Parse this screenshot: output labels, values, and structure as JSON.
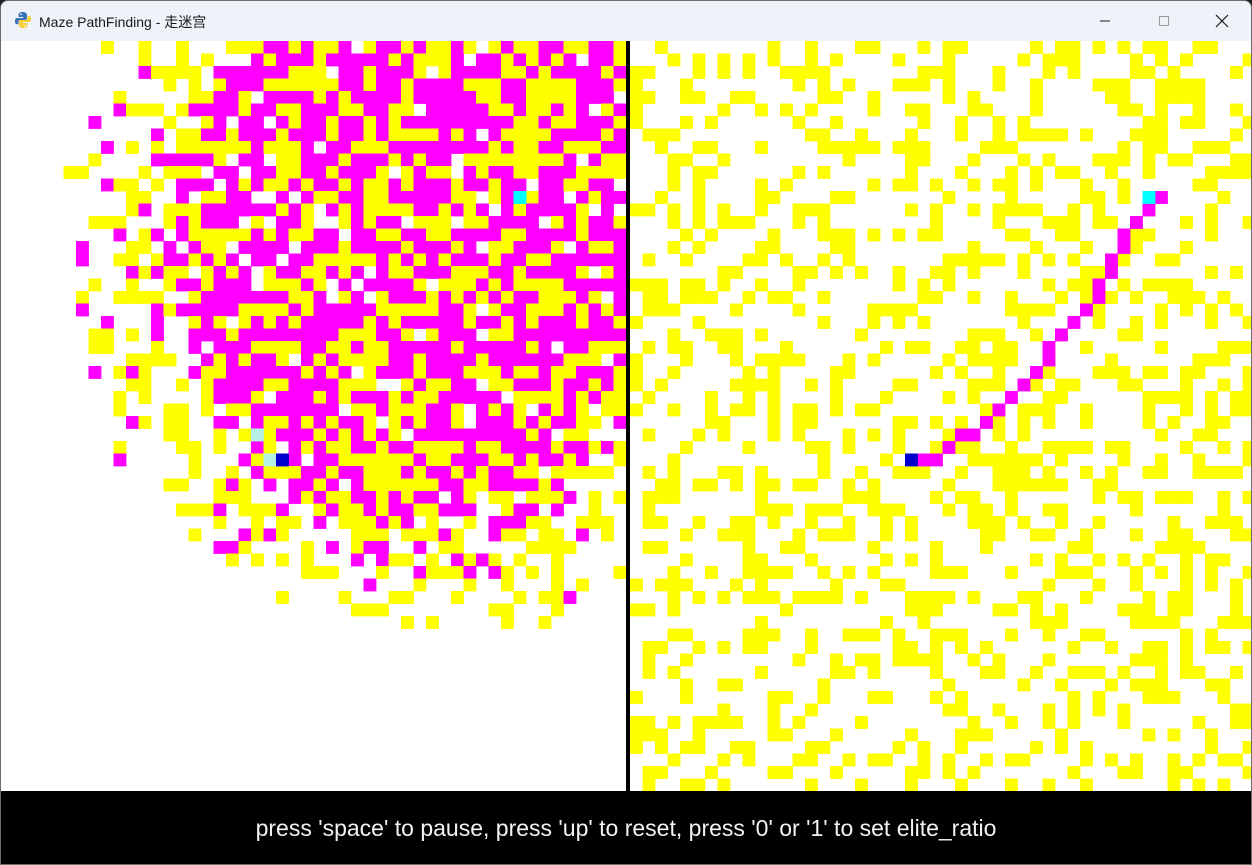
{
  "window": {
    "title": "Maze PathFinding - 走迷宫",
    "app_icon": "python-icon",
    "controls": {
      "minimize": "minimize-icon",
      "maximize": "maximize-icon",
      "close": "close-icon"
    }
  },
  "colors": {
    "wall": "#ffff00",
    "explored": "#ff00ff",
    "path": "#ff00ff",
    "start": "#0000cc",
    "goal": "#00ffff",
    "frontier": "#b4f0e6",
    "empty": "#ffffff",
    "divider": "#000000"
  },
  "status": {
    "hint": "press 'space' to pause, press 'up' to reset, press '0' or '1' to set elite_ratio"
  }
}
